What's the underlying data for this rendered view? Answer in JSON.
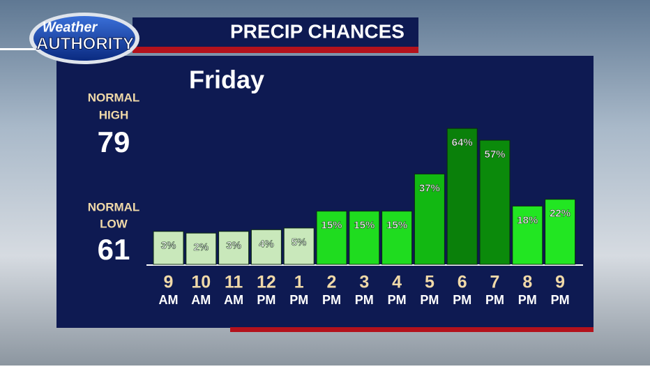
{
  "header": {
    "logo": [
      "Weather",
      "AUTHORITY"
    ],
    "title": "PRECIP CHANCES"
  },
  "normals": {
    "high": {
      "label": [
        "NORMAL",
        "HIGH"
      ],
      "value": "79"
    },
    "low": {
      "label": [
        "NORMAL",
        "LOW"
      ],
      "value": "61"
    }
  },
  "chart_data": {
    "type": "bar",
    "title": "Friday",
    "categories": [
      "9",
      "10",
      "11",
      "12",
      "1",
      "2",
      "3",
      "4",
      "5",
      "6",
      "7",
      "8",
      "9"
    ],
    "periods": [
      "AM",
      "AM",
      "AM",
      "PM",
      "PM",
      "PM",
      "PM",
      "PM",
      "PM",
      "PM",
      "PM",
      "PM",
      "PM"
    ],
    "values": [
      3,
      2,
      3,
      4,
      5,
      15,
      15,
      15,
      37,
      64,
      57,
      18,
      22
    ],
    "value_labels": [
      "3%",
      "2%",
      "3%",
      "4%",
      "5%",
      "15%",
      "15%",
      "15%",
      "37%",
      "64%",
      "57%",
      "18%",
      "22%"
    ],
    "colors": [
      "#c9e8bb",
      "#c9e8bb",
      "#c9e8bb",
      "#c9e8bb",
      "#c9e8bb",
      "#1fdc1f",
      "#1fdc1f",
      "#1fdc1f",
      "#12b812",
      "#0a800a",
      "#0b8a0b",
      "#22e622",
      "#22e622"
    ]
  }
}
